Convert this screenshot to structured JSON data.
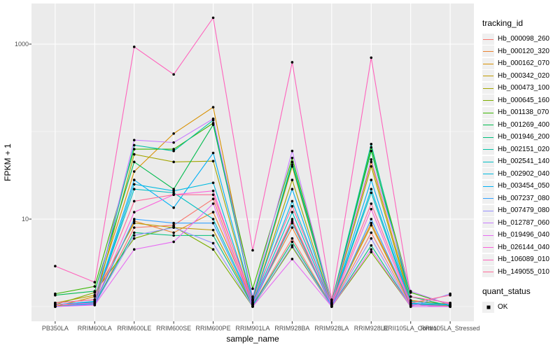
{
  "figure": {
    "background": "#FFFFFF",
    "panel_background": "#EBEBEB",
    "gridline_color": "#FFFFFF",
    "tick_color": "#333333",
    "tick_label_color": "#4D4D4D",
    "point_color": "#000000",
    "legend_key_background": "#F0F0F0"
  },
  "chart_data": {
    "type": "line",
    "title": "",
    "xlabel": "sample_name",
    "ylabel": "FPKM + 1",
    "y_scale": "log10",
    "ylim": [
      0.9,
      2300
    ],
    "grid": true,
    "legend_position": "right",
    "y_ticks": [
      {
        "label": "1000",
        "value": 1000
      },
      {
        "label": "10",
        "value": 10
      }
    ],
    "y_minor_values": [
      100,
      1
    ],
    "categories": [
      "PB350LA",
      "RRIM600LA",
      "RRIM600LE",
      "RRIM600SE",
      "RRIM600PE",
      "RRIM901LA",
      "RRIM928BA",
      "RRIM928LA",
      "RRIM928LE",
      "RRII105LA_Control",
      "RRII105LA_Stressed"
    ],
    "legend": {
      "title": "tracking_id"
    },
    "legend2": {
      "title": "quant_status",
      "items": [
        {
          "label": "OK"
        }
      ]
    },
    "series": [
      {
        "name": "Hb_000098_260",
        "color": "#F8766D",
        "values": [
          1.02,
          1.05,
          8,
          8.5,
          17,
          1.05,
          6,
          1.02,
          7,
          1.03,
          1.1
        ]
      },
      {
        "name": "Hb_000120_320",
        "color": "#EA8331",
        "values": [
          1.0,
          1.15,
          9.5,
          7,
          12,
          1.12,
          8,
          1.08,
          9,
          1.08,
          1.02
        ]
      },
      {
        "name": "Hb_000162_070",
        "color": "#D89000",
        "values": [
          1.0,
          1.3,
          35,
          95,
          190,
          1.18,
          40,
          1.1,
          45,
          1.18,
          1.05
        ]
      },
      {
        "name": "Hb_000342_020",
        "color": "#C09B00",
        "values": [
          1.1,
          1.35,
          9,
          8,
          7.5,
          1.05,
          9.5,
          1.04,
          8.5,
          1.05,
          1.0
        ]
      },
      {
        "name": "Hb_000473_100",
        "color": "#A3A500",
        "values": [
          1.0,
          1.1,
          55,
          45,
          46,
          1.1,
          28,
          1.05,
          40,
          1.1,
          1.0
        ]
      },
      {
        "name": "Hb_000645_160",
        "color": "#7CAE00",
        "values": [
          1.05,
          1.45,
          6,
          8.2,
          4.5,
          1.0,
          4.8,
          1.0,
          4.2,
          1.0,
          1.0
        ]
      },
      {
        "name": "Hb_001138_070",
        "color": "#39B600",
        "values": [
          1.4,
          1.7,
          63,
          63,
          125,
          1.6,
          50,
          1.15,
          66,
          1.45,
          1.05
        ]
      },
      {
        "name": "Hb_001269_400",
        "color": "#00BB4E",
        "values": [
          1.35,
          1.5,
          45,
          22,
          120,
          1.25,
          42,
          1.1,
          60,
          1.3,
          1.02
        ]
      },
      {
        "name": "Hb_001946_200",
        "color": "#00BF7D",
        "values": [
          1.0,
          1.08,
          7,
          6.5,
          6.5,
          1.03,
          5.5,
          1.0,
          5,
          1.0,
          1.0
        ]
      },
      {
        "name": "Hb_002151_020",
        "color": "#00C1A3",
        "values": [
          1.1,
          1.2,
          70,
          60,
          135,
          1.2,
          45,
          1.1,
          72,
          1.15,
          1.05
        ]
      },
      {
        "name": "Hb_002541_140",
        "color": "#00BFC4",
        "values": [
          1.05,
          1.12,
          22,
          20,
          10,
          1.08,
          12,
          1.05,
          20,
          1.05,
          1.0
        ]
      },
      {
        "name": "Hb_002902_040",
        "color": "#00BAE0",
        "values": [
          1.0,
          1.1,
          25,
          21,
          26,
          1.1,
          16,
          1.05,
          22,
          1.08,
          1.0
        ]
      },
      {
        "name": "Hb_003454_050",
        "color": "#00B0F6",
        "values": [
          1.05,
          1.15,
          28,
          13.5,
          57,
          1.15,
          22,
          1.05,
          28,
          1.1,
          1.04
        ]
      },
      {
        "name": "Hb_007237_080",
        "color": "#35A2FF",
        "values": [
          1.0,
          1.08,
          10,
          9,
          9,
          1.05,
          9,
          1.0,
          10,
          1.05,
          1.0
        ]
      },
      {
        "name": "Hb_007479_080",
        "color": "#9590FF",
        "values": [
          1.0,
          1.05,
          6.5,
          8,
          5.3,
          1.0,
          5,
          1.0,
          6,
          1.0,
          1.4
        ]
      },
      {
        "name": "Hb_012787_060",
        "color": "#C77CFF",
        "values": [
          1.1,
          1.2,
          80,
          75,
          140,
          1.3,
          60,
          1.1,
          48,
          1.5,
          1.05
        ]
      },
      {
        "name": "Hb_019496_040",
        "color": "#E76BF3",
        "values": [
          1.0,
          1.04,
          4.5,
          5.5,
          15,
          1.0,
          3.5,
          1.0,
          4.5,
          1.0,
          1.0
        ]
      },
      {
        "name": "Hb_026144_040",
        "color": "#FA62DB",
        "values": [
          1.05,
          1.1,
          12,
          19,
          21,
          1.08,
          10,
          1.04,
          13,
          1.05,
          1.0
        ]
      },
      {
        "name": "Hb_106089_010",
        "color": "#FF62BC",
        "values": [
          2.9,
          1.9,
          930,
          450,
          2000,
          4.4,
          620,
          1.2,
          700,
          1.3,
          1.1
        ]
      },
      {
        "name": "Hb_149055_010",
        "color": "#FF6A98",
        "values": [
          1.1,
          1.2,
          16,
          19,
          19,
          1.2,
          14,
          1.1,
          15,
          1.1,
          1.35
        ]
      }
    ]
  }
}
